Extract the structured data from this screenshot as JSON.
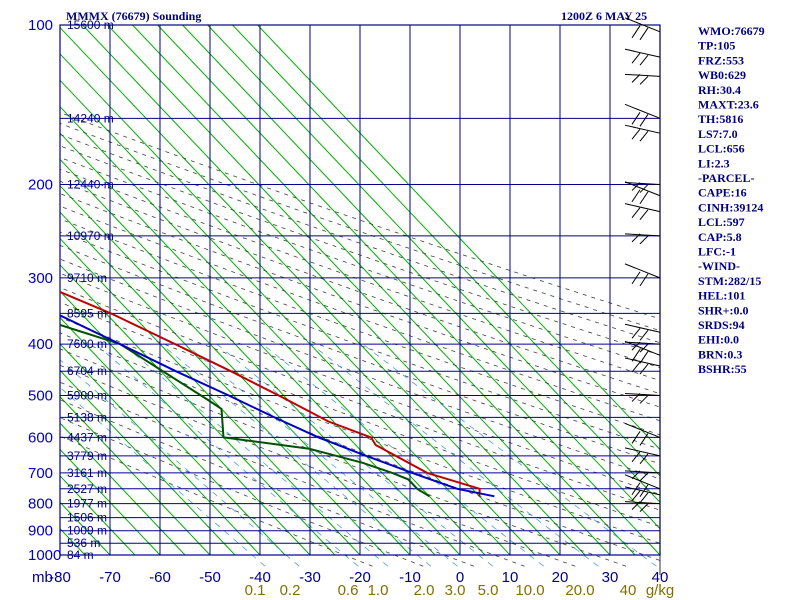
{
  "header": {
    "station": "MMMX (76679) Sounding",
    "time": "1200Z  6 MAY 25"
  },
  "side_panel": [
    "WMO:76679",
    "TP:105",
    "FRZ:553",
    "WB0:629",
    "RH:30.4",
    "MAXT:23.6",
    "TH:5816",
    "LS7:7.0",
    "LCL:656",
    "LI:2.3",
    "-PARCEL-",
    "CAPE:16",
    "CINH:39124",
    "LCL:597",
    "CAP:5.8",
    "LFC:-1",
    "-WIND-",
    "STM:282/15",
    "HEL:101",
    "SHR+:0.0",
    "SRDS:94",
    "EHI:0.0",
    "BRN:0.3",
    "BSHR:55"
  ],
  "colors": {
    "grid": "#000090",
    "isotherm_green": "#00b000",
    "dry_adiabat": "#404040",
    "mixing_ratio": "#4aa0d8",
    "temperature": "#c00000",
    "dewpoint": "#005000",
    "parcel": "#0000c0",
    "wind": "#000000"
  },
  "chart_data": {
    "type": "line",
    "diagram": "skew-t log-p",
    "xlabel": "",
    "ylabel": "mb",
    "x_ticks": [
      -80,
      -70,
      -60,
      -50,
      -40,
      -30,
      -20,
      -10,
      0,
      10,
      20,
      30,
      40
    ],
    "x_tick_labels": [
      "-80",
      "-70",
      "-60",
      "-50",
      "-40",
      "-30",
      "-20",
      "-10",
      "0",
      "10",
      "20",
      "30",
      "40"
    ],
    "pressure_ticks": [
      100,
      200,
      300,
      400,
      500,
      600,
      700,
      800,
      900,
      1000
    ],
    "pressure_tick_labels": [
      "100",
      "200",
      "300",
      "400",
      "500",
      "600",
      "700",
      "800",
      "900",
      "1000"
    ],
    "height_labels": [
      {
        "p": 100,
        "text": "15600 m"
      },
      {
        "p": 150,
        "text": "14240 m"
      },
      {
        "p": 200,
        "text": "12440 m"
      },
      {
        "p": 250,
        "text": "10970 m"
      },
      {
        "p": 300,
        "text": "9710 m"
      },
      {
        "p": 350,
        "text": "8595 m"
      },
      {
        "p": 400,
        "text": "7600 m"
      },
      {
        "p": 450,
        "text": "6704 m"
      },
      {
        "p": 500,
        "text": "5900 m"
      },
      {
        "p": 550,
        "text": "5138 m"
      },
      {
        "p": 600,
        "text": "4437 m"
      },
      {
        "p": 650,
        "text": "3779 m"
      },
      {
        "p": 700,
        "text": "3161 m"
      },
      {
        "p": 750,
        "text": "2527 m"
      },
      {
        "p": 800,
        "text": "1977 m"
      },
      {
        "p": 850,
        "text": "1506 m"
      },
      {
        "p": 900,
        "text": "1009 m"
      },
      {
        "p": 950,
        "text": "536 m"
      },
      {
        "p": 1000,
        "text": "84 m"
      }
    ],
    "mixing_ratio_labels": [
      "0.1",
      "0.2",
      "0.6",
      "1.0",
      "2.0",
      "3.0",
      "5.0",
      "10.0",
      "20.0",
      "40",
      "g/kg"
    ],
    "series": [
      {
        "key": "temperature",
        "values": [
          [
            775,
            15
          ],
          [
            750,
            16.5
          ],
          [
            700,
            9
          ],
          [
            620,
            4
          ],
          [
            600,
            4.5
          ],
          [
            560,
            -1
          ],
          [
            500,
            -6
          ],
          [
            450,
            -11
          ],
          [
            400,
            -17
          ],
          [
            350,
            -24
          ],
          [
            310,
            -32
          ],
          [
            290,
            -36
          ],
          [
            250,
            -42
          ],
          [
            200,
            -53
          ],
          [
            150,
            -65
          ],
          [
            120,
            -76
          ],
          [
            105,
            -80
          ],
          [
            101,
            -80
          ]
        ]
      },
      {
        "key": "dewpoint",
        "values": [
          [
            775,
            5
          ],
          [
            750,
            4
          ],
          [
            720,
            4
          ],
          [
            700,
            2
          ],
          [
            670,
            -2
          ],
          [
            630,
            -10
          ],
          [
            600,
            -25
          ],
          [
            530,
            -20
          ],
          [
            510,
            -21
          ],
          [
            400,
            -28
          ],
          [
            355,
            -40
          ],
          [
            300,
            -35
          ],
          [
            290,
            -40
          ],
          [
            250,
            -50
          ],
          [
            210,
            -60
          ],
          [
            170,
            -65
          ],
          [
            150,
            -73
          ],
          [
            140,
            -80
          ]
        ]
      },
      {
        "key": "parcel",
        "values": [
          [
            775,
            18
          ],
          [
            750,
            12
          ],
          [
            700,
            6
          ],
          [
            650,
            0
          ],
          [
            600,
            -6
          ],
          [
            550,
            -11
          ],
          [
            500,
            -16
          ],
          [
            450,
            -22
          ],
          [
            400,
            -28
          ],
          [
            350,
            -35
          ],
          [
            300,
            -45
          ],
          [
            250,
            -53
          ],
          [
            200,
            -62
          ],
          [
            150,
            -78
          ],
          [
            145,
            -80
          ]
        ]
      }
    ],
    "wind_levels": [
      103,
      115,
      125,
      150,
      160,
      200,
      210,
      225,
      250,
      300,
      380,
      400,
      420,
      440,
      500,
      600,
      650,
      700,
      750,
      770,
      800
    ]
  }
}
